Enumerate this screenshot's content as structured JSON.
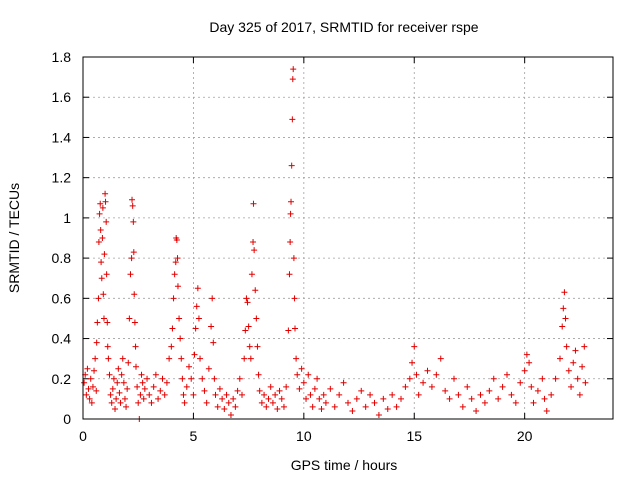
{
  "chart_data": {
    "type": "scatter",
    "title": "Day 325 of 2017, SRMTID for receiver rspe",
    "xlabel": "GPS time / hours",
    "ylabel": "SRMTID / TECUs",
    "xlim": [
      0,
      24
    ],
    "ylim": [
      0,
      1.8
    ],
    "x_ticks": [
      0,
      5,
      10,
      15,
      20
    ],
    "x_tick_labels": [
      "0",
      "5",
      "10",
      "15",
      "20"
    ],
    "y_ticks": [
      0,
      0.2,
      0.4,
      0.6,
      0.8,
      1,
      1.2,
      1.4,
      1.6,
      1.8
    ],
    "y_tick_labels": [
      "0",
      "0.2",
      "0.4",
      "0.6",
      "0.8",
      "1",
      "1.2",
      "1.4",
      "1.6",
      "1.8"
    ],
    "grid": true,
    "marker": "plus",
    "series": [
      {
        "name": "SRMTID",
        "color": "#e00000",
        "points": [
          [
            0.05,
            0.18
          ],
          [
            0.1,
            0.22
          ],
          [
            0.15,
            0.12
          ],
          [
            0.2,
            0.25
          ],
          [
            0.25,
            0.15
          ],
          [
            0.3,
            0.1
          ],
          [
            0.35,
            0.2
          ],
          [
            0.4,
            0.08
          ],
          [
            0.45,
            0.16
          ],
          [
            0.5,
            0.24
          ],
          [
            0.55,
            0.3
          ],
          [
            0.6,
            0.14
          ],
          [
            0.62,
            0.38
          ],
          [
            0.65,
            0.48
          ],
          [
            0.7,
            0.6
          ],
          [
            0.72,
            0.88
          ],
          [
            0.75,
            1.02
          ],
          [
            0.78,
            1.07
          ],
          [
            0.8,
            0.94
          ],
          [
            0.82,
            0.78
          ],
          [
            0.85,
            0.7
          ],
          [
            0.88,
            0.9
          ],
          [
            0.9,
            1.05
          ],
          [
            0.92,
            0.62
          ],
          [
            0.95,
            0.5
          ],
          [
            0.97,
            0.82
          ],
          [
            1.0,
            1.12
          ],
          [
            1.02,
            1.08
          ],
          [
            1.05,
            0.98
          ],
          [
            1.07,
            0.72
          ],
          [
            1.1,
            0.48
          ],
          [
            1.12,
            0.36
          ],
          [
            1.15,
            0.3
          ],
          [
            1.2,
            0.22
          ],
          [
            1.25,
            0.12
          ],
          [
            1.3,
            0.08
          ],
          [
            1.35,
            0.15
          ],
          [
            1.4,
            0.2
          ],
          [
            1.45,
            0.05
          ],
          [
            1.5,
            0.1
          ],
          [
            1.55,
            0.18
          ],
          [
            1.6,
            0.25
          ],
          [
            1.65,
            0.13
          ],
          [
            1.7,
            0.08
          ],
          [
            1.75,
            0.22
          ],
          [
            1.8,
            0.3
          ],
          [
            1.85,
            0.18
          ],
          [
            1.9,
            0.1
          ],
          [
            1.95,
            0.06
          ],
          [
            2.0,
            0.15
          ],
          [
            2.05,
            0.28
          ],
          [
            2.1,
            0.5
          ],
          [
            2.15,
            0.72
          ],
          [
            2.2,
            0.8
          ],
          [
            2.22,
            1.09
          ],
          [
            2.25,
            1.06
          ],
          [
            2.28,
            0.98
          ],
          [
            2.3,
            0.83
          ],
          [
            2.32,
            0.62
          ],
          [
            2.35,
            0.48
          ],
          [
            2.38,
            0.36
          ],
          [
            2.4,
            0.26
          ],
          [
            2.45,
            0.16
          ],
          [
            2.5,
            0.08
          ],
          [
            2.55,
            0.0
          ],
          [
            2.6,
            0.12
          ],
          [
            2.65,
            0.22
          ],
          [
            2.7,
            0.18
          ],
          [
            2.75,
            0.1
          ],
          [
            2.8,
            0.15
          ],
          [
            2.9,
            0.2
          ],
          [
            3.0,
            0.12
          ],
          [
            3.1,
            0.08
          ],
          [
            3.2,
            0.16
          ],
          [
            3.3,
            0.22
          ],
          [
            3.4,
            0.1
          ],
          [
            3.5,
            0.14
          ],
          [
            3.6,
            0.2
          ],
          [
            3.7,
            0.12
          ],
          [
            3.8,
            0.18
          ],
          [
            3.9,
            0.3
          ],
          [
            4.0,
            0.36
          ],
          [
            4.05,
            0.45
          ],
          [
            4.1,
            0.6
          ],
          [
            4.15,
            0.72
          ],
          [
            4.2,
            0.78
          ],
          [
            4.22,
            0.9
          ],
          [
            4.25,
            0.89
          ],
          [
            4.28,
            0.8
          ],
          [
            4.3,
            0.66
          ],
          [
            4.35,
            0.5
          ],
          [
            4.4,
            0.4
          ],
          [
            4.45,
            0.3
          ],
          [
            4.5,
            0.2
          ],
          [
            4.55,
            0.12
          ],
          [
            4.6,
            0.08
          ],
          [
            4.7,
            0.16
          ],
          [
            4.8,
            0.26
          ],
          [
            4.9,
            0.2
          ],
          [
            5.0,
            0.12
          ],
          [
            5.05,
            0.32
          ],
          [
            5.1,
            0.45
          ],
          [
            5.15,
            0.56
          ],
          [
            5.2,
            0.65
          ],
          [
            5.25,
            0.5
          ],
          [
            5.3,
            0.3
          ],
          [
            5.4,
            0.2
          ],
          [
            5.5,
            0.14
          ],
          [
            5.6,
            0.08
          ],
          [
            5.7,
            0.25
          ],
          [
            5.8,
            0.46
          ],
          [
            5.85,
            0.6
          ],
          [
            5.9,
            0.38
          ],
          [
            5.95,
            0.2
          ],
          [
            6.0,
            0.12
          ],
          [
            6.1,
            0.06
          ],
          [
            6.2,
            0.15
          ],
          [
            6.3,
            0.1
          ],
          [
            6.4,
            0.05
          ],
          [
            6.5,
            0.12
          ],
          [
            6.6,
            0.08
          ],
          [
            6.7,
            0.02
          ],
          [
            6.8,
            0.1
          ],
          [
            6.9,
            0.06
          ],
          [
            7.0,
            0.14
          ],
          [
            7.1,
            0.2
          ],
          [
            7.2,
            0.12
          ],
          [
            7.3,
            0.3
          ],
          [
            7.35,
            0.44
          ],
          [
            7.4,
            0.6
          ],
          [
            7.45,
            0.58
          ],
          [
            7.5,
            0.46
          ],
          [
            7.55,
            0.36
          ],
          [
            7.6,
            0.3
          ],
          [
            7.65,
            0.72
          ],
          [
            7.7,
            0.88
          ],
          [
            7.72,
            1.07
          ],
          [
            7.75,
            0.84
          ],
          [
            7.8,
            0.64
          ],
          [
            7.85,
            0.5
          ],
          [
            7.9,
            0.36
          ],
          [
            7.95,
            0.22
          ],
          [
            8.0,
            0.14
          ],
          [
            8.1,
            0.08
          ],
          [
            8.2,
            0.12
          ],
          [
            8.3,
            0.06
          ],
          [
            8.4,
            0.1
          ],
          [
            8.5,
            0.16
          ],
          [
            8.6,
            0.08
          ],
          [
            8.7,
            0.12
          ],
          [
            8.8,
            0.05
          ],
          [
            8.9,
            0.14
          ],
          [
            9.0,
            0.1
          ],
          [
            9.1,
            0.06
          ],
          [
            9.2,
            0.16
          ],
          [
            9.3,
            0.44
          ],
          [
            9.35,
            0.72
          ],
          [
            9.38,
            0.88
          ],
          [
            9.4,
            1.02
          ],
          [
            9.42,
            1.08
          ],
          [
            9.45,
            1.26
          ],
          [
            9.48,
            1.49
          ],
          [
            9.5,
            1.69
          ],
          [
            9.52,
            1.74
          ],
          [
            9.55,
            0.8
          ],
          [
            9.58,
            0.6
          ],
          [
            9.6,
            0.45
          ],
          [
            9.65,
            0.3
          ],
          [
            9.7,
            0.22
          ],
          [
            9.8,
            0.15
          ],
          [
            9.9,
            0.25
          ],
          [
            10.0,
            0.18
          ],
          [
            10.1,
            0.1
          ],
          [
            10.2,
            0.22
          ],
          [
            10.3,
            0.12
          ],
          [
            10.4,
            0.06
          ],
          [
            10.5,
            0.15
          ],
          [
            10.6,
            0.2
          ],
          [
            10.7,
            0.1
          ],
          [
            10.8,
            0.05
          ],
          [
            10.9,
            0.12
          ],
          [
            11.0,
            0.08
          ],
          [
            11.2,
            0.15
          ],
          [
            11.4,
            0.06
          ],
          [
            11.6,
            0.12
          ],
          [
            11.8,
            0.18
          ],
          [
            12.0,
            0.08
          ],
          [
            12.2,
            0.04
          ],
          [
            12.4,
            0.1
          ],
          [
            12.6,
            0.14
          ],
          [
            12.8,
            0.06
          ],
          [
            13.0,
            0.12
          ],
          [
            13.2,
            0.08
          ],
          [
            13.4,
            0.02
          ],
          [
            13.6,
            0.1
          ],
          [
            13.8,
            0.05
          ],
          [
            14.0,
            0.12
          ],
          [
            14.2,
            0.06
          ],
          [
            14.4,
            0.1
          ],
          [
            14.6,
            0.16
          ],
          [
            14.8,
            0.2
          ],
          [
            14.9,
            0.28
          ],
          [
            15.0,
            0.36
          ],
          [
            15.1,
            0.22
          ],
          [
            15.2,
            0.12
          ],
          [
            15.4,
            0.18
          ],
          [
            15.6,
            0.24
          ],
          [
            15.8,
            0.16
          ],
          [
            16.0,
            0.22
          ],
          [
            16.2,
            0.3
          ],
          [
            16.4,
            0.14
          ],
          [
            16.6,
            0.1
          ],
          [
            16.8,
            0.2
          ],
          [
            17.0,
            0.12
          ],
          [
            17.2,
            0.06
          ],
          [
            17.4,
            0.16
          ],
          [
            17.6,
            0.1
          ],
          [
            17.8,
            0.04
          ],
          [
            18.0,
            0.12
          ],
          [
            18.2,
            0.08
          ],
          [
            18.4,
            0.14
          ],
          [
            18.6,
            0.2
          ],
          [
            18.8,
            0.1
          ],
          [
            19.0,
            0.16
          ],
          [
            19.2,
            0.22
          ],
          [
            19.4,
            0.12
          ],
          [
            19.6,
            0.08
          ],
          [
            19.8,
            0.18
          ],
          [
            20.0,
            0.24
          ],
          [
            20.1,
            0.32
          ],
          [
            20.2,
            0.28
          ],
          [
            20.3,
            0.16
          ],
          [
            20.4,
            0.08
          ],
          [
            20.6,
            0.14
          ],
          [
            20.8,
            0.2
          ],
          [
            20.9,
            0.1
          ],
          [
            21.0,
            0.04
          ],
          [
            21.2,
            0.12
          ],
          [
            21.4,
            0.2
          ],
          [
            21.6,
            0.3
          ],
          [
            21.7,
            0.46
          ],
          [
            21.75,
            0.55
          ],
          [
            21.8,
            0.63
          ],
          [
            21.85,
            0.5
          ],
          [
            21.9,
            0.36
          ],
          [
            22.0,
            0.24
          ],
          [
            22.1,
            0.16
          ],
          [
            22.2,
            0.28
          ],
          [
            22.3,
            0.34
          ],
          [
            22.4,
            0.2
          ],
          [
            22.5,
            0.12
          ],
          [
            22.6,
            0.26
          ],
          [
            22.7,
            0.36
          ],
          [
            22.75,
            0.18
          ]
        ]
      }
    ]
  }
}
